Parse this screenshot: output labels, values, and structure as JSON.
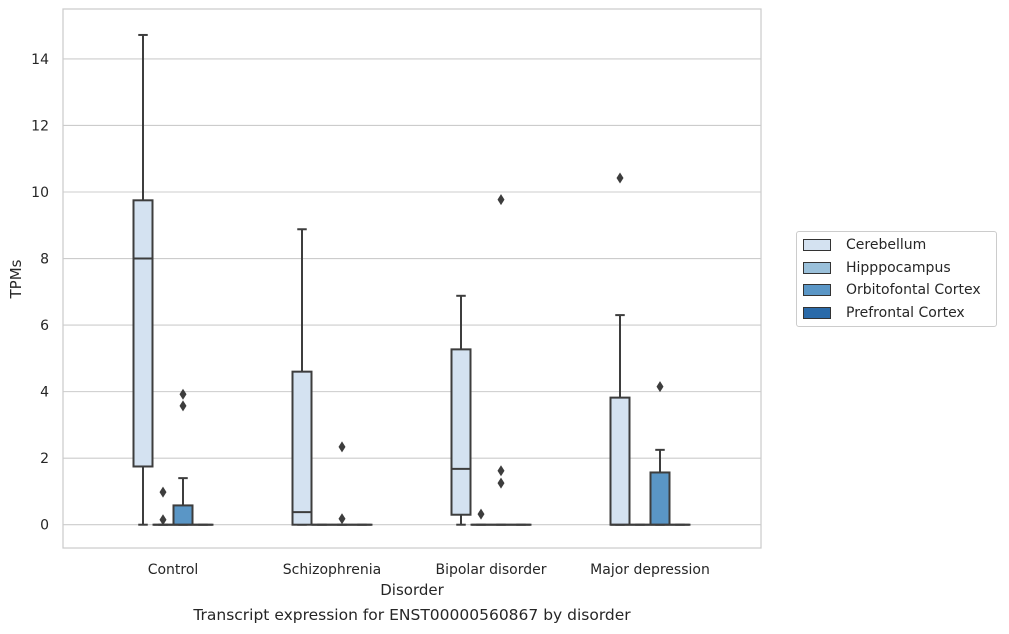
{
  "chart_data": {
    "type": "box",
    "title": "Transcript expression for ENST00000560867 by disorder",
    "xlabel": "Disorder",
    "ylabel": "TPMs",
    "ylim": [
      -0.7,
      15.5
    ],
    "yticks": [
      0,
      2,
      4,
      6,
      8,
      10,
      12,
      14
    ],
    "categories": [
      "Control",
      "Schizophrenia",
      "Bipolar disorder",
      "Major depression"
    ],
    "grid": "horizontal",
    "legend_position": "right",
    "series": [
      {
        "name": "Cerebellum",
        "color": "#d4e2f1",
        "boxes": [
          {
            "min": 0,
            "q1": 1.75,
            "median": 8.0,
            "q3": 9.75,
            "max": 14.72,
            "outliers": []
          },
          {
            "min": 0,
            "q1": 0,
            "median": 0.38,
            "q3": 4.6,
            "max": 8.88,
            "outliers": []
          },
          {
            "min": 0,
            "q1": 0.3,
            "median": 1.68,
            "q3": 5.27,
            "max": 6.88,
            "outliers": []
          },
          {
            "min": 0,
            "q1": 0,
            "median": 0,
            "q3": 3.82,
            "max": 6.3,
            "outliers": [
              10.42
            ]
          }
        ]
      },
      {
        "name": "Hipppocampus",
        "color": "#9ac0da",
        "boxes": [
          {
            "min": 0,
            "q1": 0,
            "median": 0,
            "q3": 0,
            "max": 0,
            "outliers": [
              0.15,
              0.98
            ]
          },
          {
            "min": 0,
            "q1": 0,
            "median": 0,
            "q3": 0,
            "max": 0,
            "outliers": []
          },
          {
            "min": 0,
            "q1": 0,
            "median": 0,
            "q3": 0,
            "max": 0,
            "outliers": [
              0.32
            ]
          },
          {
            "min": 0,
            "q1": 0,
            "median": 0,
            "q3": 0,
            "max": 0,
            "outliers": []
          }
        ]
      },
      {
        "name": "Orbitofontal Cortex",
        "color": "#5a96c6",
        "boxes": [
          {
            "min": 0,
            "q1": 0,
            "median": 0,
            "q3": 0.58,
            "max": 1.4,
            "outliers": [
              3.57,
              3.92
            ]
          },
          {
            "min": 0,
            "q1": 0,
            "median": 0,
            "q3": 0,
            "max": 0,
            "outliers": [
              0.18,
              2.34
            ]
          },
          {
            "min": 0,
            "q1": 0,
            "median": 0,
            "q3": 0,
            "max": 0,
            "outliers": [
              1.25,
              1.62,
              9.77
            ]
          },
          {
            "min": 0,
            "q1": 0,
            "median": 0,
            "q3": 1.57,
            "max": 2.25,
            "outliers": [
              4.15
            ]
          }
        ]
      },
      {
        "name": "Prefrontal Cortex",
        "color": "#2a6aa9",
        "boxes": [
          {
            "min": 0,
            "q1": 0,
            "median": 0,
            "q3": 0,
            "max": 0,
            "outliers": []
          },
          {
            "min": 0,
            "q1": 0,
            "median": 0,
            "q3": 0,
            "max": 0,
            "outliers": []
          },
          {
            "min": 0,
            "q1": 0,
            "median": 0,
            "q3": 0,
            "max": 0,
            "outliers": []
          },
          {
            "min": 0,
            "q1": 0,
            "median": 0,
            "q3": 0,
            "max": 0,
            "outliers": []
          }
        ]
      }
    ]
  }
}
